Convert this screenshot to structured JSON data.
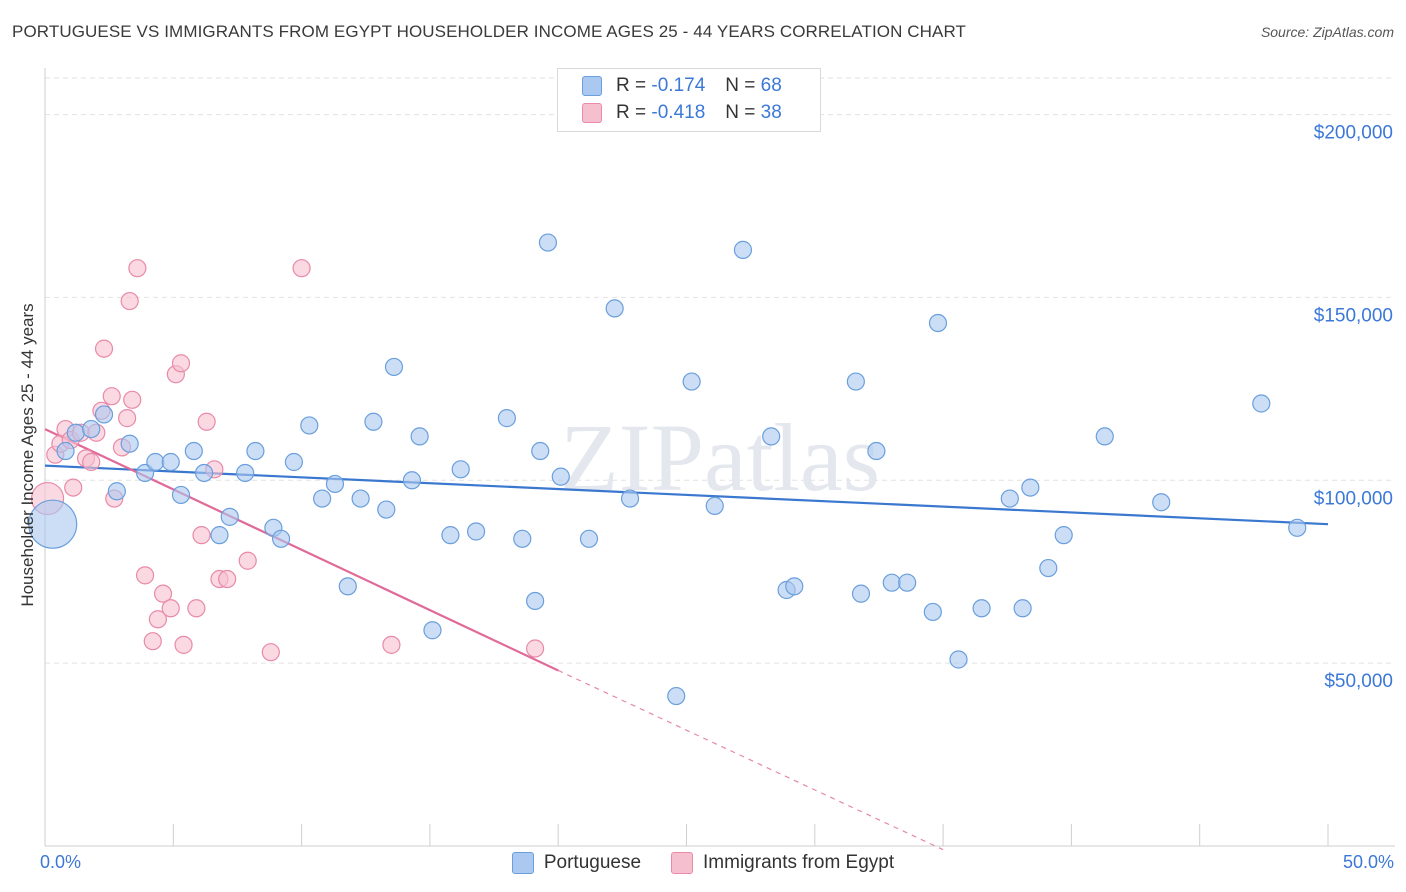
{
  "title": "PORTUGUESE VS IMMIGRANTS FROM EGYPT HOUSEHOLDER INCOME AGES 25 - 44 YEARS CORRELATION CHART",
  "source": "Source: ZipAtlas.com",
  "watermark": "ZIPatlas",
  "legend": {
    "rows": [
      {
        "r_label": "R = ",
        "r_value": "-0.174",
        "n_label": "N = ",
        "n_value": "68"
      },
      {
        "r_label": "R = ",
        "r_value": "-0.418",
        "n_label": "N = ",
        "n_value": "38"
      }
    ]
  },
  "colors": {
    "blue_fill": "#aac8f0",
    "blue_stroke": "#6a9fdc",
    "blue_line": "#3a78d0",
    "pink_fill": "#f6bfd0",
    "pink_stroke": "#e88aa8",
    "pink_line": "#e06a98",
    "axis_text": "#3b78d8",
    "grid": "#e2e2e2"
  },
  "chart_data": {
    "type": "scatter",
    "title": "PORTUGUESE VS IMMIGRANTS FROM EGYPT HOUSEHOLDER INCOME AGES 25 - 44 YEARS CORRELATION CHART",
    "xlabel": "",
    "ylabel": "Householder Income Ages 25 - 44 years",
    "xlim": [
      0,
      50
    ],
    "ylim": [
      0,
      210000
    ],
    "x_tick_labels": [
      "0.0%",
      "50.0%"
    ],
    "y_ticks": [
      50000,
      100000,
      150000,
      200000
    ],
    "y_tick_labels": [
      "$50,000",
      "$100,000",
      "$150,000",
      "$200,000"
    ],
    "grid": true,
    "legend_position": "top-center",
    "series": [
      {
        "name": "Portuguese",
        "R": -0.174,
        "N": 68,
        "trend": {
          "x": [
            0,
            50
          ],
          "y": [
            104000,
            88000
          ]
        },
        "points": [
          {
            "x": 0.3,
            "y": 88000,
            "big": true
          },
          {
            "x": 0.8,
            "y": 108000
          },
          {
            "x": 1.2,
            "y": 113000
          },
          {
            "x": 1.8,
            "y": 114000
          },
          {
            "x": 2.3,
            "y": 118000
          },
          {
            "x": 2.8,
            "y": 97000
          },
          {
            "x": 3.3,
            "y": 110000
          },
          {
            "x": 3.9,
            "y": 102000
          },
          {
            "x": 4.3,
            "y": 105000
          },
          {
            "x": 4.9,
            "y": 105000
          },
          {
            "x": 5.3,
            "y": 96000
          },
          {
            "x": 5.8,
            "y": 108000
          },
          {
            "x": 6.2,
            "y": 102000
          },
          {
            "x": 6.8,
            "y": 85000
          },
          {
            "x": 7.2,
            "y": 90000
          },
          {
            "x": 7.8,
            "y": 102000
          },
          {
            "x": 8.2,
            "y": 108000
          },
          {
            "x": 8.9,
            "y": 87000
          },
          {
            "x": 9.2,
            "y": 84000
          },
          {
            "x": 9.7,
            "y": 105000
          },
          {
            "x": 10.3,
            "y": 115000
          },
          {
            "x": 10.8,
            "y": 95000
          },
          {
            "x": 11.3,
            "y": 99000
          },
          {
            "x": 11.8,
            "y": 71000
          },
          {
            "x": 12.3,
            "y": 95000
          },
          {
            "x": 12.8,
            "y": 116000
          },
          {
            "x": 13.3,
            "y": 92000
          },
          {
            "x": 13.6,
            "y": 131000
          },
          {
            "x": 14.3,
            "y": 100000
          },
          {
            "x": 14.6,
            "y": 112000
          },
          {
            "x": 15.1,
            "y": 59000
          },
          {
            "x": 15.8,
            "y": 85000
          },
          {
            "x": 16.2,
            "y": 103000
          },
          {
            "x": 16.8,
            "y": 86000
          },
          {
            "x": 18.0,
            "y": 117000
          },
          {
            "x": 18.6,
            "y": 84000
          },
          {
            "x": 19.3,
            "y": 108000
          },
          {
            "x": 19.1,
            "y": 67000
          },
          {
            "x": 19.6,
            "y": 165000
          },
          {
            "x": 20.1,
            "y": 101000
          },
          {
            "x": 21.2,
            "y": 84000
          },
          {
            "x": 22.2,
            "y": 147000
          },
          {
            "x": 22.8,
            "y": 95000
          },
          {
            "x": 24.6,
            "y": 41000
          },
          {
            "x": 25.2,
            "y": 127000
          },
          {
            "x": 26.1,
            "y": 93000
          },
          {
            "x": 27.2,
            "y": 163000
          },
          {
            "x": 28.3,
            "y": 112000
          },
          {
            "x": 28.9,
            "y": 70000
          },
          {
            "x": 29.2,
            "y": 71000
          },
          {
            "x": 31.6,
            "y": 127000
          },
          {
            "x": 31.8,
            "y": 69000
          },
          {
            "x": 32.4,
            "y": 108000
          },
          {
            "x": 33.0,
            "y": 72000
          },
          {
            "x": 33.6,
            "y": 72000
          },
          {
            "x": 34.6,
            "y": 64000
          },
          {
            "x": 34.8,
            "y": 143000
          },
          {
            "x": 35.6,
            "y": 51000
          },
          {
            "x": 36.5,
            "y": 65000
          },
          {
            "x": 37.6,
            "y": 95000
          },
          {
            "x": 38.1,
            "y": 65000
          },
          {
            "x": 38.4,
            "y": 98000
          },
          {
            "x": 39.1,
            "y": 76000
          },
          {
            "x": 39.7,
            "y": 85000
          },
          {
            "x": 41.3,
            "y": 112000
          },
          {
            "x": 43.5,
            "y": 94000
          },
          {
            "x": 47.4,
            "y": 121000
          },
          {
            "x": 48.8,
            "y": 87000
          }
        ]
      },
      {
        "name": "Immigrants from Egypt",
        "R": -0.418,
        "N": 38,
        "trend": {
          "x": [
            0,
            20
          ],
          "y": [
            114000,
            48000
          ]
        },
        "trend_dashed": {
          "x": [
            20,
            35
          ],
          "y": [
            48000,
            -1000
          ]
        },
        "points": [
          {
            "x": 0.1,
            "y": 95000,
            "big": true
          },
          {
            "x": 0.4,
            "y": 107000
          },
          {
            "x": 0.6,
            "y": 110000
          },
          {
            "x": 0.8,
            "y": 114000
          },
          {
            "x": 1.0,
            "y": 111000
          },
          {
            "x": 1.1,
            "y": 98000
          },
          {
            "x": 1.4,
            "y": 113000
          },
          {
            "x": 1.6,
            "y": 106000
          },
          {
            "x": 1.8,
            "y": 105000
          },
          {
            "x": 2.0,
            "y": 113000
          },
          {
            "x": 2.2,
            "y": 119000
          },
          {
            "x": 2.3,
            "y": 136000
          },
          {
            "x": 2.6,
            "y": 123000
          },
          {
            "x": 2.7,
            "y": 95000
          },
          {
            "x": 3.0,
            "y": 109000
          },
          {
            "x": 3.2,
            "y": 117000
          },
          {
            "x": 3.3,
            "y": 149000
          },
          {
            "x": 3.4,
            "y": 122000
          },
          {
            "x": 3.6,
            "y": 158000
          },
          {
            "x": 3.9,
            "y": 74000
          },
          {
            "x": 4.2,
            "y": 56000
          },
          {
            "x": 4.4,
            "y": 62000
          },
          {
            "x": 4.6,
            "y": 69000
          },
          {
            "x": 4.9,
            "y": 65000
          },
          {
            "x": 5.1,
            "y": 129000
          },
          {
            "x": 5.3,
            "y": 132000
          },
          {
            "x": 5.4,
            "y": 55000
          },
          {
            "x": 5.9,
            "y": 65000
          },
          {
            "x": 6.1,
            "y": 85000
          },
          {
            "x": 6.3,
            "y": 116000
          },
          {
            "x": 6.6,
            "y": 103000
          },
          {
            "x": 6.8,
            "y": 73000
          },
          {
            "x": 7.1,
            "y": 73000
          },
          {
            "x": 7.9,
            "y": 78000
          },
          {
            "x": 8.8,
            "y": 53000
          },
          {
            "x": 10.0,
            "y": 158000
          },
          {
            "x": 13.5,
            "y": 55000
          },
          {
            "x": 19.1,
            "y": 54000
          }
        ]
      }
    ]
  }
}
